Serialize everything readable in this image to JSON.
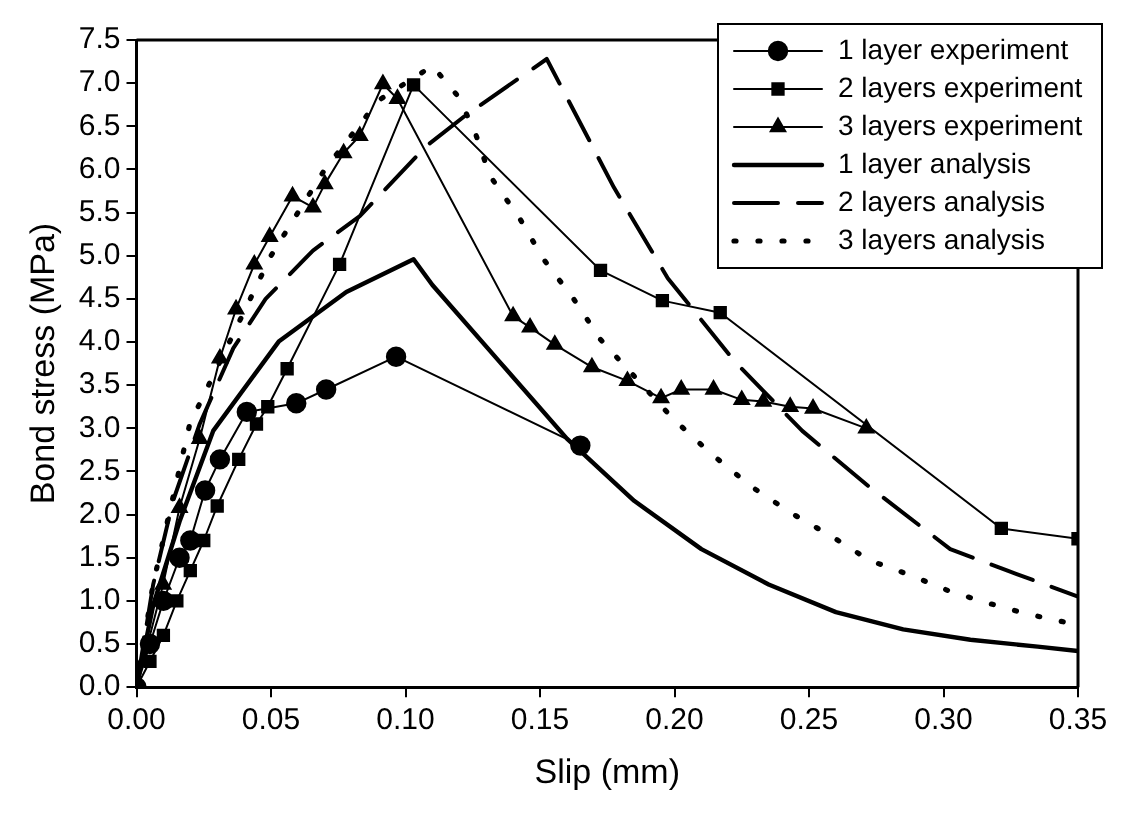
{
  "chart_data": {
    "type": "line",
    "xlabel": "Slip (mm)",
    "ylabel": "Bond stress (MPa)",
    "xlim": [
      0,
      0.35
    ],
    "xticks": [
      {
        "value": 0,
        "label": "0.00"
      },
      {
        "value": 0.05,
        "label": "0.05"
      },
      {
        "value": 0.1,
        "label": "0.10"
      },
      {
        "value": 0.15,
        "label": "0.15"
      },
      {
        "value": 0.2,
        "label": "0.20"
      },
      {
        "value": 0.25,
        "label": "0.25"
      },
      {
        "value": 0.3,
        "label": "0.30"
      },
      {
        "value": 0.35,
        "label": "0.35"
      }
    ],
    "ylim": [
      0,
      7.5
    ],
    "yticks": [
      {
        "value": 0,
        "label": "0.0"
      },
      {
        "value": 0.5,
        "label": "0.5"
      },
      {
        "value": 1,
        "label": "1.0"
      },
      {
        "value": 1.5,
        "label": "1.5"
      },
      {
        "value": 2,
        "label": "2.0"
      },
      {
        "value": 2.5,
        "label": "2.5"
      },
      {
        "value": 3,
        "label": "3.0"
      },
      {
        "value": 3.5,
        "label": "3.5"
      },
      {
        "value": 4,
        "label": "4.0"
      },
      {
        "value": 4.5,
        "label": "4.5"
      },
      {
        "value": 5,
        "label": "5.0"
      },
      {
        "value": 5.5,
        "label": "5.5"
      },
      {
        "value": 6,
        "label": "6.0"
      },
      {
        "value": 6.5,
        "label": "6.5"
      },
      {
        "value": 7,
        "label": "7.0"
      },
      {
        "value": 7.5,
        "label": "7.5"
      }
    ],
    "grid": false,
    "legend": "top right",
    "series": [
      {
        "name": "1 layer experiment",
        "color": "#000000",
        "marker": "circle",
        "line_style": "solid",
        "x": [
          0,
          0.005,
          0.01,
          0.016,
          0.02,
          0.0255,
          0.031,
          0.041,
          0.0594,
          0.0705,
          0.0965,
          0.165
        ],
        "values": [
          0,
          0.5,
          1.0,
          1.5,
          1.7,
          2.28,
          2.64,
          3.19,
          3.29,
          3.45,
          3.83,
          2.8
        ]
      },
      {
        "name": "2 layers experiment",
        "color": "#000000",
        "marker": "square",
        "line_style": "solid",
        "x": [
          0,
          0.005,
          0.01,
          0.015,
          0.02,
          0.025,
          0.03,
          0.038,
          0.0446,
          0.0488,
          0.056,
          0.0755,
          0.103,
          0.1725,
          0.1955,
          0.217,
          0.3215,
          0.35
        ],
        "values": [
          0,
          0.3,
          0.6,
          1.0,
          1.35,
          1.7,
          2.1,
          2.64,
          3.05,
          3.25,
          3.69,
          4.9,
          6.98,
          4.83,
          4.48,
          4.34,
          1.84,
          1.72
        ]
      },
      {
        "name": "3 layers experiment",
        "color": "#000000",
        "marker": "triangle",
        "line_style": "solid",
        "x": [
          0,
          0.0099,
          0.016,
          0.0235,
          0.031,
          0.037,
          0.0438,
          0.0495,
          0.058,
          0.0656,
          0.07,
          0.077,
          0.083,
          0.0916,
          0.097,
          0.14,
          0.1463,
          0.1555,
          0.1693,
          0.1825,
          0.195,
          0.2025,
          0.2145,
          0.225,
          0.233,
          0.243,
          0.2515,
          0.2713
        ],
        "values": [
          0,
          1.19,
          2.08,
          2.88,
          3.81,
          4.38,
          4.9,
          5.22,
          5.69,
          5.56,
          5.83,
          6.19,
          6.39,
          6.99,
          6.82,
          4.3,
          4.17,
          3.97,
          3.71,
          3.55,
          3.35,
          3.45,
          3.45,
          3.33,
          3.31,
          3.25,
          3.23,
          3.0
        ]
      },
      {
        "name": "1 layer analysis",
        "color": "#000000",
        "marker": "none",
        "line_style": "solid",
        "x": [
          0,
          0.0062,
          0.016,
          0.0285,
          0.053,
          0.078,
          0.103,
          0.11,
          0.135,
          0.16,
          0.185,
          0.21,
          0.235,
          0.26,
          0.285,
          0.31,
          0.335,
          0.35
        ],
        "values": [
          0,
          0.95,
          1.92,
          2.97,
          4.01,
          4.58,
          4.96,
          4.66,
          3.77,
          2.88,
          2.16,
          1.6,
          1.19,
          0.87,
          0.67,
          0.55,
          0.47,
          0.42
        ]
      },
      {
        "name": "2 layers analysis",
        "color": "#000000",
        "marker": "none",
        "line_style": "dashed",
        "x": [
          0,
          0.0062,
          0.0136,
          0.0235,
          0.036,
          0.048,
          0.0656,
          0.083,
          0.1077,
          0.1225,
          0.1525,
          0.1775,
          0.1975,
          0.2225,
          0.2475,
          0.2725,
          0.3025,
          0.3238,
          0.35
        ],
        "values": [
          0,
          1.19,
          2.16,
          3.05,
          3.93,
          4.5,
          5.06,
          5.46,
          6.27,
          6.63,
          7.28,
          5.79,
          4.74,
          3.77,
          2.97,
          2.32,
          1.6,
          1.35,
          1.05
        ]
      },
      {
        "name": "3 layers analysis",
        "color": "#000000",
        "marker": "none",
        "line_style": "dotted",
        "x": [
          0,
          0.0062,
          0.0198,
          0.031,
          0.05,
          0.07,
          0.09,
          0.11,
          0.12,
          0.1263,
          0.1313,
          0.1425,
          0.1513,
          0.1625,
          0.1725,
          0.1995,
          0.2138,
          0.2288,
          0.2438,
          0.2588,
          0.2725,
          0.2875,
          0.3025,
          0.317,
          0.331,
          0.35
        ],
        "values": [
          0,
          1.2,
          3.05,
          3.77,
          5.0,
          6.0,
          6.8,
          7.2,
          6.83,
          6.39,
          5.93,
          5.43,
          4.96,
          4.5,
          4.03,
          3.11,
          2.7,
          2.32,
          2.01,
          1.74,
          1.47,
          1.3,
          1.11,
          0.97,
          0.85,
          0.72
        ]
      }
    ]
  }
}
